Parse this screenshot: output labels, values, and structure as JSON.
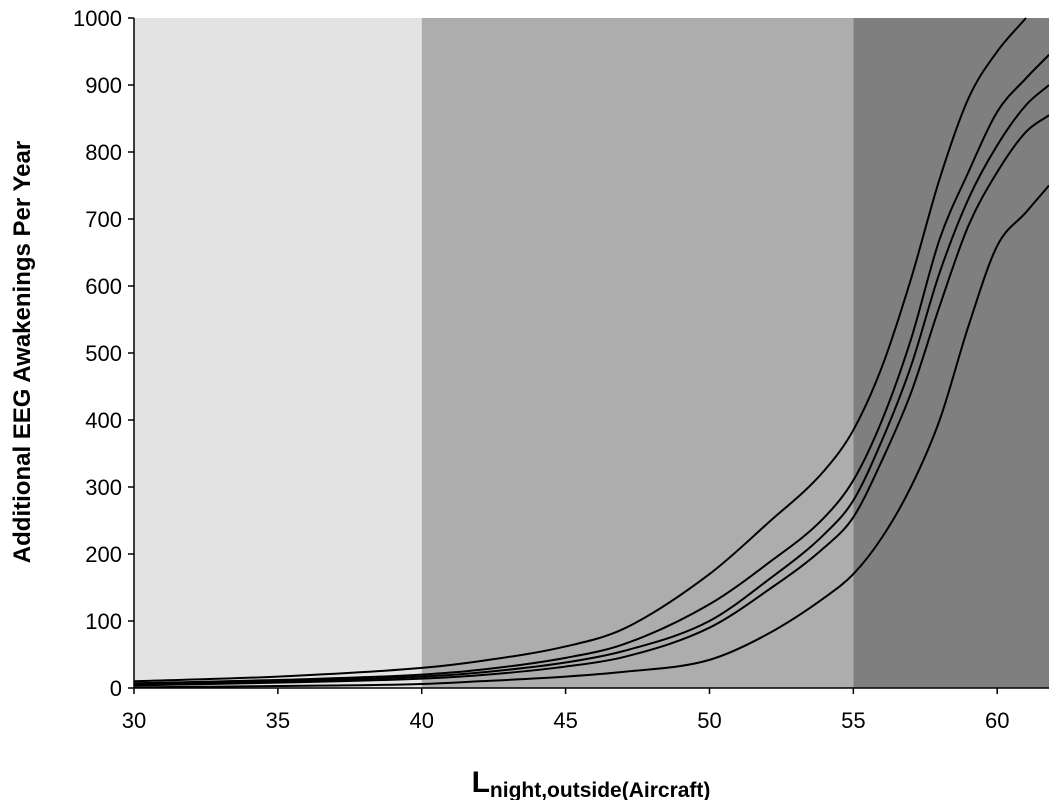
{
  "chart_data": {
    "type": "line",
    "xlabel": {
      "main": "L",
      "subscript": "night,outside(Aircraft)"
    },
    "ylabel": "Additional EEG Awakenings Per Year",
    "xlim": [
      30,
      61.8
    ],
    "ylim": [
      0,
      1000
    ],
    "x_ticks": [
      30,
      35,
      40,
      45,
      50,
      55,
      60
    ],
    "y_ticks": [
      0,
      100,
      200,
      300,
      400,
      500,
      600,
      700,
      800,
      900,
      1000
    ],
    "grid": false,
    "legend": "none",
    "background_bands": [
      {
        "x_start": 30,
        "x_end": 40,
        "color": "#e3e3e3"
      },
      {
        "x_start": 40,
        "x_end": 55,
        "color": "#adadad"
      },
      {
        "x_start": 55,
        "x_end": 61.8,
        "color": "#7f7f7f"
      }
    ],
    "series": [
      {
        "color": "#000000",
        "points": [
          [
            30,
            10
          ],
          [
            35,
            17
          ],
          [
            40,
            30
          ],
          [
            42,
            40
          ],
          [
            45,
            62
          ],
          [
            47,
            88
          ],
          [
            50,
            170
          ],
          [
            52,
            245
          ],
          [
            54,
            325
          ],
          [
            55,
            385
          ],
          [
            56,
            480
          ],
          [
            57,
            610
          ],
          [
            58,
            760
          ],
          [
            59,
            880
          ],
          [
            60,
            950
          ],
          [
            61,
            1000
          ]
        ]
      },
      {
        "color": "#000000",
        "points": [
          [
            30,
            7
          ],
          [
            35,
            12
          ],
          [
            40,
            20
          ],
          [
            42,
            27
          ],
          [
            45,
            45
          ],
          [
            47,
            65
          ],
          [
            50,
            125
          ],
          [
            52,
            185
          ],
          [
            54,
            255
          ],
          [
            55,
            310
          ],
          [
            56,
            400
          ],
          [
            57,
            520
          ],
          [
            58,
            670
          ],
          [
            59,
            770
          ],
          [
            60,
            860
          ],
          [
            61,
            910
          ],
          [
            61.8,
            945
          ]
        ]
      },
      {
        "color": "#000000",
        "points": [
          [
            30,
            5
          ],
          [
            35,
            10
          ],
          [
            40,
            17
          ],
          [
            42,
            23
          ],
          [
            45,
            38
          ],
          [
            47,
            55
          ],
          [
            50,
            100
          ],
          [
            52,
            160
          ],
          [
            54,
            230
          ],
          [
            55,
            280
          ],
          [
            56,
            370
          ],
          [
            57,
            480
          ],
          [
            58,
            620
          ],
          [
            59,
            730
          ],
          [
            60,
            810
          ],
          [
            61,
            870
          ],
          [
            61.8,
            900
          ]
        ]
      },
      {
        "color": "#000000",
        "points": [
          [
            30,
            4
          ],
          [
            35,
            8
          ],
          [
            40,
            14
          ],
          [
            42,
            19
          ],
          [
            45,
            32
          ],
          [
            47,
            46
          ],
          [
            50,
            90
          ],
          [
            52,
            145
          ],
          [
            54,
            210
          ],
          [
            55,
            255
          ],
          [
            56,
            340
          ],
          [
            57,
            440
          ],
          [
            58,
            570
          ],
          [
            59,
            690
          ],
          [
            60,
            770
          ],
          [
            61,
            830
          ],
          [
            61.8,
            855
          ]
        ]
      },
      {
        "color": "#000000",
        "points": [
          [
            30,
            1
          ],
          [
            35,
            3
          ],
          [
            40,
            6
          ],
          [
            42,
            10
          ],
          [
            45,
            17
          ],
          [
            47,
            24
          ],
          [
            50,
            42
          ],
          [
            52,
            80
          ],
          [
            54,
            135
          ],
          [
            55,
            170
          ],
          [
            56,
            225
          ],
          [
            57,
            300
          ],
          [
            58,
            400
          ],
          [
            59,
            540
          ],
          [
            60,
            660
          ],
          [
            61,
            710
          ],
          [
            61.8,
            750
          ]
        ]
      }
    ]
  }
}
